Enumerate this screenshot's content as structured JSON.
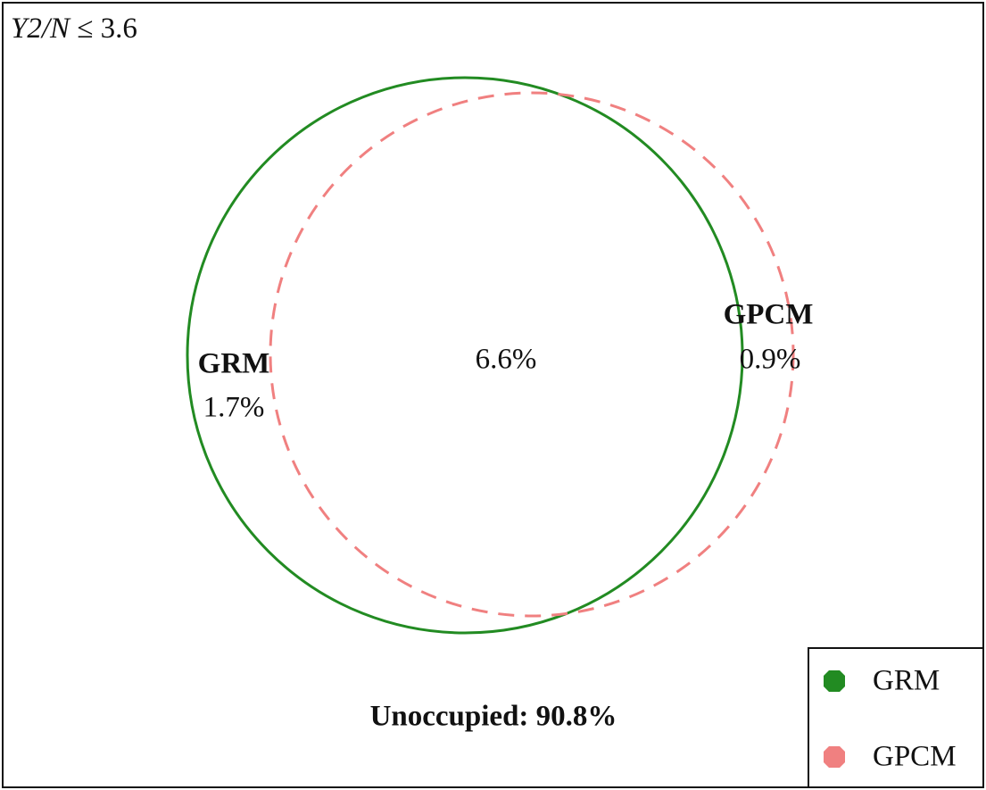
{
  "title": {
    "variable": "Y2/N",
    "condition": "≤ 3.6"
  },
  "sets": [
    {
      "label": "GRM",
      "only": "1.7%"
    },
    {
      "label": "GPCM",
      "only": "0.9%"
    }
  ],
  "overlap": "6.6%",
  "unoccupied": "Unoccupied: 90.8%",
  "legend": [
    "GRM",
    "GPCM"
  ]
}
